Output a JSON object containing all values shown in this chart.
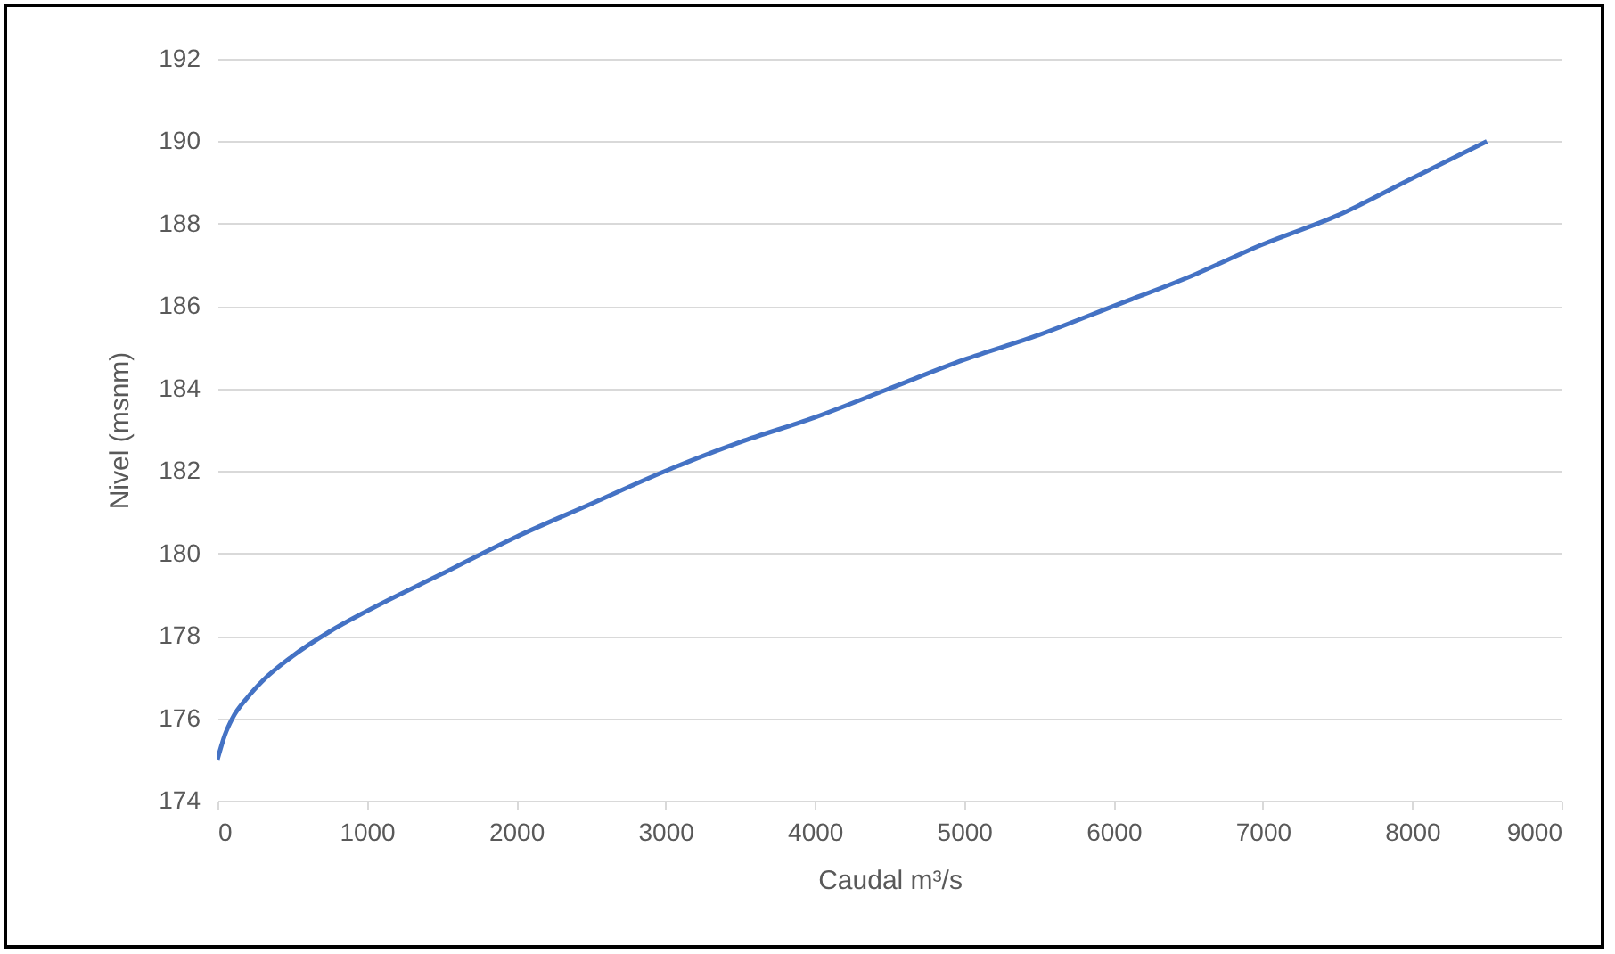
{
  "chart_data": {
    "type": "line",
    "xlabel": "Caudal m³/s",
    "ylabel": "Nivel (msnm)",
    "series": [
      {
        "color": "#4472c4",
        "x": [
          0,
          50,
          100,
          200,
          300,
          500,
          750,
          1000,
          1500,
          2000,
          2500,
          3000,
          3500,
          4000,
          4500,
          5000,
          5500,
          6000,
          6500,
          7000,
          7500,
          8000,
          8500
        ],
        "values": [
          175.0,
          175.6,
          176.0,
          176.5,
          176.9,
          177.5,
          178.1,
          178.6,
          179.5,
          180.4,
          181.2,
          182.0,
          182.7,
          183.3,
          184.0,
          184.7,
          185.3,
          186.0,
          186.7,
          187.5,
          188.2,
          189.1,
          190.0
        ]
      }
    ],
    "xlim": [
      0,
      9000
    ],
    "xticks": [
      0,
      1000,
      2000,
      3000,
      4000,
      5000,
      6000,
      7000,
      8000,
      9000
    ],
    "ylim": [
      174,
      192
    ],
    "yticks": [
      174,
      176,
      178,
      180,
      182,
      184,
      186,
      188,
      190,
      192
    ],
    "grid": "y",
    "marker": "none",
    "line_style": "solid"
  }
}
